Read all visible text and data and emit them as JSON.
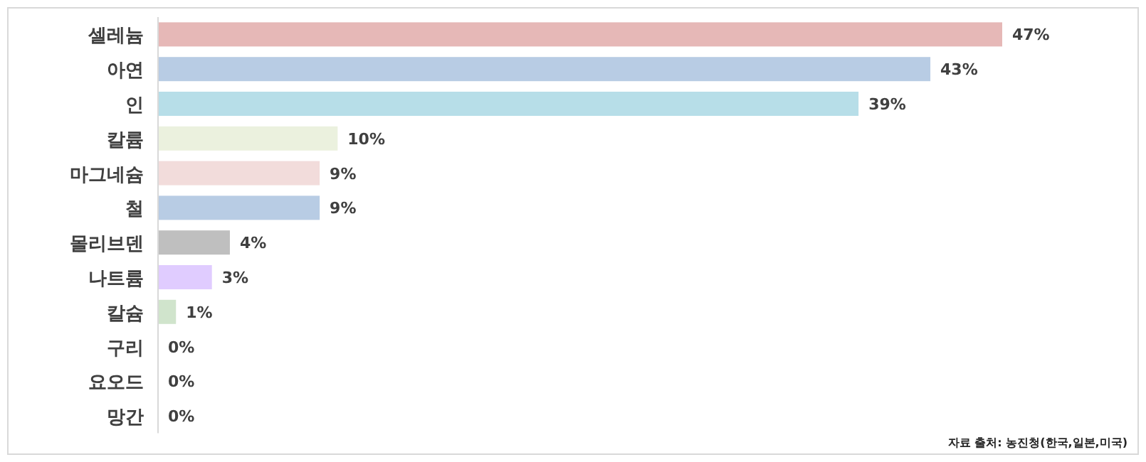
{
  "chart_data": {
    "type": "bar",
    "orientation": "horizontal",
    "categories": [
      "셀레늄",
      "아연",
      "인",
      "칼륨",
      "마그네슘",
      "철",
      "몰리브덴",
      "나트륨",
      "칼슘",
      "구리",
      "요오드",
      "망간"
    ],
    "values": [
      47,
      43,
      39,
      10,
      9,
      9,
      4,
      3,
      1,
      0,
      0,
      0
    ],
    "colors": [
      "#e6b8b7",
      "#b8cce4",
      "#b7dee8",
      "#ebf1de",
      "#f2dcdb",
      "#b8cce4",
      "#bfbfbf",
      "#e0ccff",
      "#d0e4cc",
      "#4f81bd",
      "#ffffff",
      "#ffffff"
    ],
    "value_labels": [
      "47%",
      "43%",
      "39%",
      "10%",
      "9%",
      "9%",
      "4%",
      "3%",
      "1%",
      "0%",
      "0%",
      "0%"
    ],
    "annotations": [
      "자료 출처: 농진청(한국,일본,미국)"
    ]
  }
}
